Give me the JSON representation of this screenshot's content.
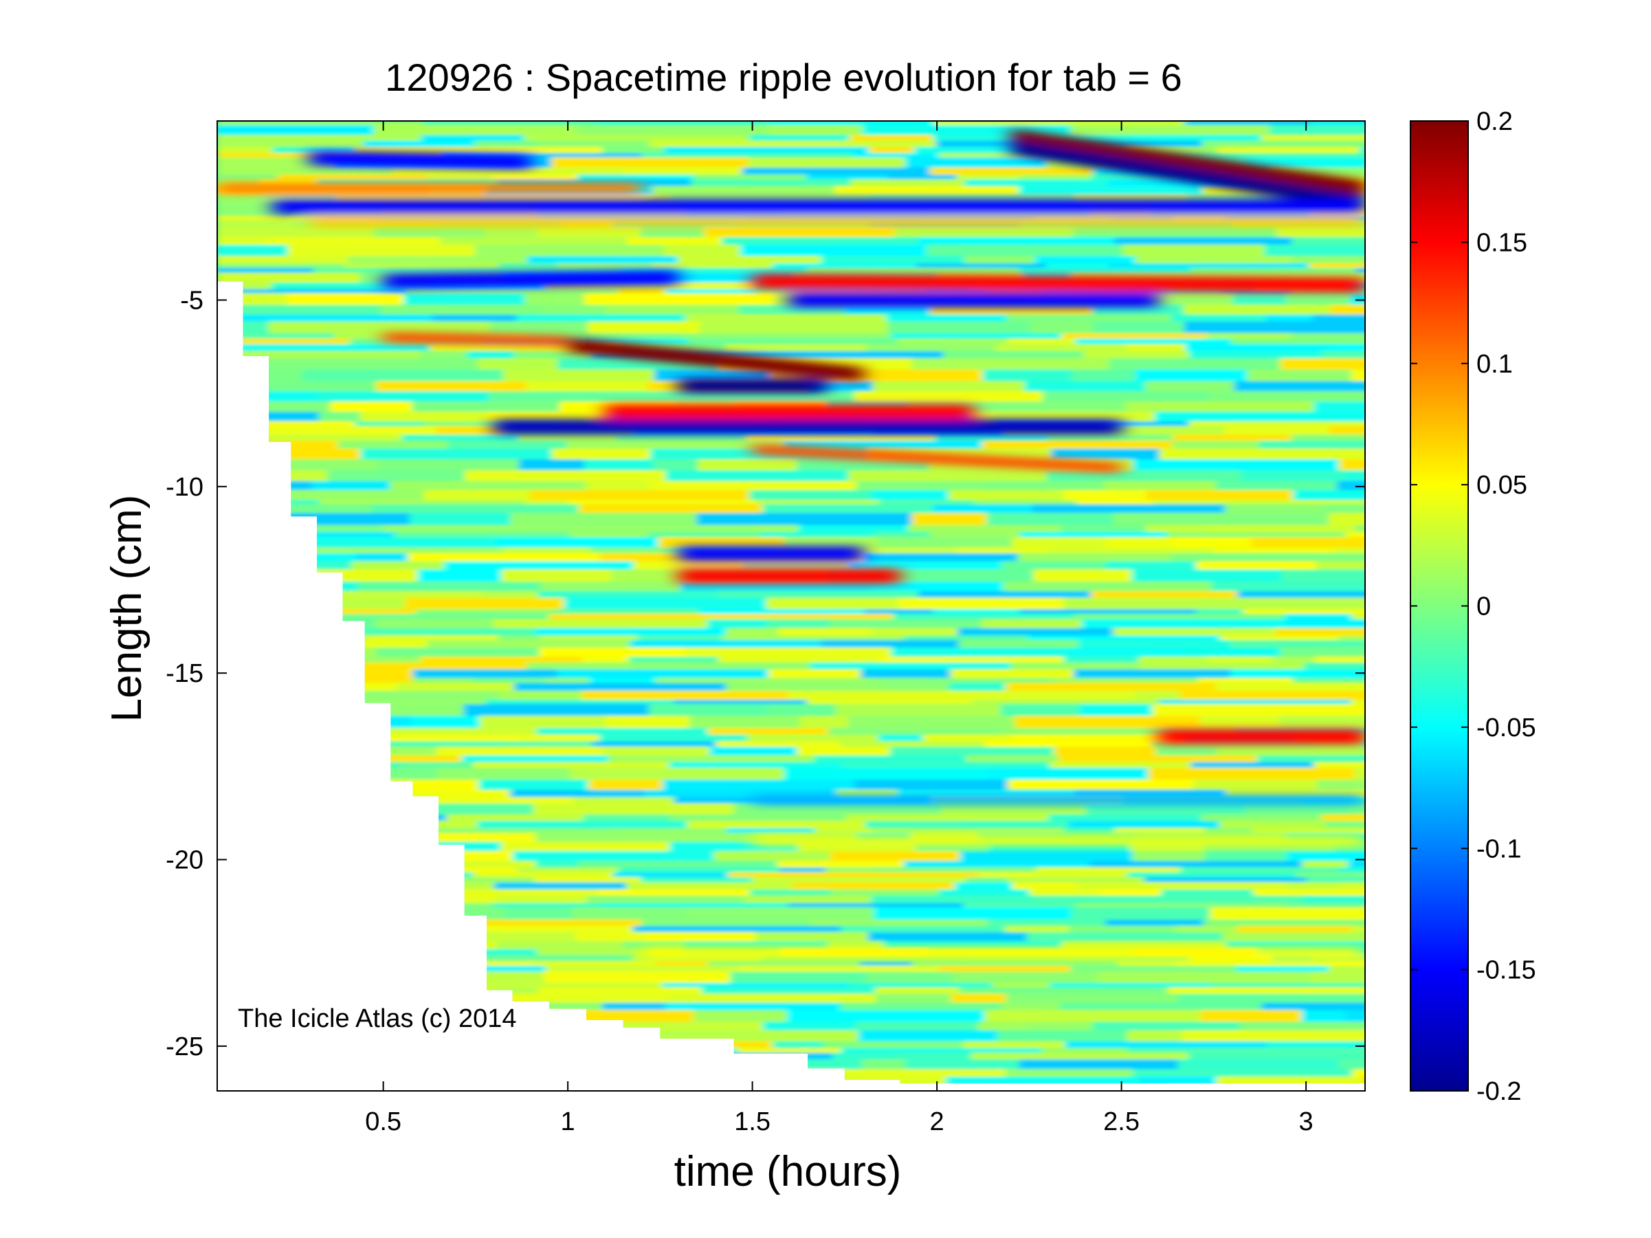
{
  "chart_data": {
    "type": "heatmap",
    "title": "120926 : Spacetime ripple evolution for tab = 6",
    "xlabel": "time (hours)",
    "ylabel": "Length (cm)",
    "annotation": "The Icicle Atlas (c) 2014",
    "xlim": [
      0.05,
      3.16
    ],
    "ylim": [
      -26.2,
      -0.2
    ],
    "x_ticks": [
      0.5,
      1,
      1.5,
      2,
      2.5,
      3
    ],
    "x_tick_labels": [
      "0.5",
      "1",
      "1.5",
      "2",
      "2.5",
      "3"
    ],
    "y_ticks": [
      -5,
      -10,
      -15,
      -20,
      -25
    ],
    "y_tick_labels": [
      "-5",
      "-10",
      "-15",
      "-20",
      "-25"
    ],
    "colorbar": {
      "colormap": "jet",
      "clim": [
        -0.2,
        0.2
      ],
      "ticks": [
        0.2,
        0.15,
        0.1,
        0.05,
        0,
        -0.05,
        -0.1,
        -0.15,
        -0.2
      ],
      "tick_labels": [
        "0.2",
        "0.15",
        "0.1",
        "0.05",
        "0",
        "-0.05",
        "-0.1",
        "-0.15",
        "-0.2"
      ]
    },
    "grid": false,
    "data_boundary": [
      {
        "t": 0.05,
        "min_length": -2.0
      },
      {
        "t": 0.12,
        "min_length": -4.5
      },
      {
        "t": 0.19,
        "min_length": -6.5
      },
      {
        "t": 0.25,
        "min_length": -8.8
      },
      {
        "t": 0.32,
        "min_length": -10.8
      },
      {
        "t": 0.39,
        "min_length": -12.3
      },
      {
        "t": 0.45,
        "min_length": -13.6
      },
      {
        "t": 0.52,
        "min_length": -15.8
      },
      {
        "t": 0.58,
        "min_length": -17.9
      },
      {
        "t": 0.65,
        "min_length": -18.3
      },
      {
        "t": 0.72,
        "min_length": -19.6
      },
      {
        "t": 0.78,
        "min_length": -21.5
      },
      {
        "t": 0.85,
        "min_length": -23.5
      },
      {
        "t": 0.95,
        "min_length": -23.8
      },
      {
        "t": 1.05,
        "min_length": -24.0
      },
      {
        "t": 1.15,
        "min_length": -24.3
      },
      {
        "t": 1.25,
        "min_length": -24.5
      },
      {
        "t": 1.45,
        "min_length": -24.8
      },
      {
        "t": 1.65,
        "min_length": -25.2
      },
      {
        "t": 1.75,
        "min_length": -25.6
      },
      {
        "t": 1.9,
        "min_length": -25.9
      },
      {
        "t": 2.1,
        "min_length": -26.0
      },
      {
        "t": 3.16,
        "min_length": -26.0
      }
    ],
    "features": [
      {
        "t_start": 2.2,
        "t_end": 3.16,
        "len_start": -0.6,
        "len_end": -2.0,
        "value": 0.2
      },
      {
        "t_start": 2.2,
        "t_end": 3.16,
        "len_start": -0.9,
        "len_end": -2.4,
        "value": -0.2
      },
      {
        "t_start": 0.3,
        "t_end": 0.9,
        "len_start": -1.2,
        "len_end": -1.3,
        "value": -0.15
      },
      {
        "t_start": 0.05,
        "t_end": 1.2,
        "len_start": -2.0,
        "len_end": -2.0,
        "value": 0.1
      },
      {
        "t_start": 0.2,
        "t_end": 3.16,
        "len_start": -2.5,
        "len_end": -2.5,
        "value": -0.15
      },
      {
        "t_start": 0.3,
        "t_end": 3.16,
        "len_start": -2.9,
        "len_end": -2.9,
        "value": 0.07
      },
      {
        "t_start": 0.5,
        "t_end": 1.3,
        "len_start": -4.5,
        "len_end": -4.4,
        "value": -0.15
      },
      {
        "t_start": 1.5,
        "t_end": 3.16,
        "len_start": -4.5,
        "len_end": -4.6,
        "value": 0.15
      },
      {
        "t_start": 1.6,
        "t_end": 2.6,
        "len_start": -5.0,
        "len_end": -5.0,
        "value": -0.15
      },
      {
        "t_start": 0.5,
        "t_end": 1.0,
        "len_start": -6.0,
        "len_end": -6.1,
        "value": 0.12
      },
      {
        "t_start": 1.0,
        "t_end": 1.8,
        "len_start": -6.2,
        "len_end": -7.0,
        "value": 0.2
      },
      {
        "t_start": 1.3,
        "t_end": 1.7,
        "len_start": -7.3,
        "len_end": -7.3,
        "value": -0.2
      },
      {
        "t_start": 1.1,
        "t_end": 2.1,
        "len_start": -8.0,
        "len_end": -8.0,
        "value": 0.15
      },
      {
        "t_start": 0.8,
        "t_end": 2.5,
        "len_start": -8.4,
        "len_end": -8.4,
        "value": -0.18
      },
      {
        "t_start": 1.5,
        "t_end": 2.5,
        "len_start": -9.0,
        "len_end": -9.5,
        "value": 0.12
      },
      {
        "t_start": 1.3,
        "t_end": 1.8,
        "len_start": -11.8,
        "len_end": -11.8,
        "value": -0.15
      },
      {
        "t_start": 1.3,
        "t_end": 1.9,
        "len_start": -12.4,
        "len_end": -12.4,
        "value": 0.15
      },
      {
        "t_start": 2.6,
        "t_end": 3.16,
        "len_start": -16.7,
        "len_end": -16.7,
        "value": 0.15
      },
      {
        "t_start": 1.5,
        "t_end": 3.16,
        "len_start": -18.4,
        "len_end": -18.4,
        "value": -0.08
      },
      {
        "t_start": 1.5,
        "t_end": 3.16,
        "len_start": -19.5,
        "len_end": -19.5,
        "value": 0.04
      },
      {
        "t_start": 1.2,
        "t_end": 3.16,
        "len_start": -22.5,
        "len_end": -22.5,
        "value": 0.05
      }
    ]
  }
}
